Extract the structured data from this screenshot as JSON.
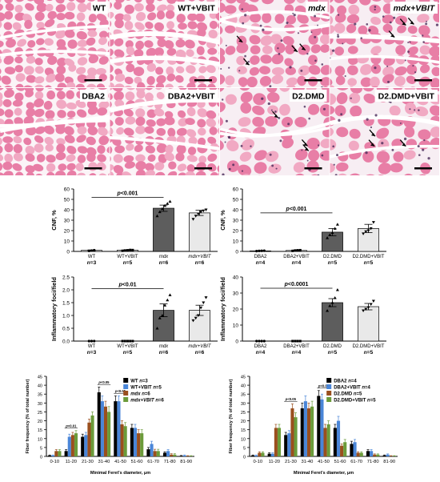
{
  "micrographs": [
    {
      "label": "WT",
      "italic": false,
      "arrows": 0,
      "tissue": "healthy"
    },
    {
      "label": "WT+VBIT",
      "italic": false,
      "arrows": 0,
      "tissue": "healthy"
    },
    {
      "label": "mdx",
      "italic": true,
      "arrows": 4,
      "tissue": "dystrophic"
    },
    {
      "label": "mdx+VBIT",
      "italic": true,
      "arrows": 3,
      "tissue": "dystrophic"
    },
    {
      "label": "DBA2",
      "italic": false,
      "arrows": 0,
      "tissue": "healthy"
    },
    {
      "label": "DBA2+VBIT",
      "italic": false,
      "arrows": 0,
      "tissue": "healthy"
    },
    {
      "label": "D2.DMD",
      "italic": false,
      "arrows": 3,
      "tissue": "fibrotic"
    },
    {
      "label": "D2.DMD+VBIT",
      "italic": false,
      "arrows": 3,
      "tissue": "fibrotic"
    }
  ],
  "colors": {
    "fiber": "#e87ea6",
    "fiber_pale": "#f1a9c3",
    "background": "#f7eef3",
    "bar": "#5d5d5d",
    "bar_light": "#e9e9e9",
    "black": "#000000",
    "blue": "#4a86d8",
    "brown": "#9a4f1e",
    "green": "#6b9b3a"
  },
  "chart_data": [
    {
      "type": "bar",
      "id": "cnf-mdx",
      "ylabel": "CNF, %",
      "ylim": [
        0,
        60
      ],
      "yticks": [
        0,
        10,
        20,
        30,
        40,
        50,
        60
      ],
      "categories": [
        "WT",
        "WT+VBIT",
        "mdx",
        "mdx+VBIT"
      ],
      "italic_categories": [
        false,
        false,
        true,
        true
      ],
      "n_labels": [
        "n=3",
        "n=5",
        "n=6",
        "n=6"
      ],
      "values": [
        1.0,
        1.2,
        41.5,
        37.0
      ],
      "errors": [
        0.4,
        0.4,
        3.0,
        2.5
      ],
      "points": [
        [
          0.5,
          0.8,
          1.2
        ],
        [
          0.6,
          0.9,
          1.1,
          1.4,
          1.3
        ],
        [
          34,
          38,
          41,
          44,
          46,
          48
        ],
        [
          31,
          34,
          36,
          38,
          39,
          40
        ]
      ],
      "significance": {
        "label": "p<0.001",
        "from": 0,
        "to": 2,
        "y": 52
      }
    },
    {
      "type": "bar",
      "id": "cnf-d2",
      "ylabel": "CNF, %",
      "ylim": [
        0,
        60
      ],
      "yticks": [
        0,
        10,
        20,
        30,
        40,
        50,
        60
      ],
      "categories": [
        "DBA2",
        "DBA2+VBIT",
        "D2.DMD",
        "D2.DMD+VBIT"
      ],
      "italic_categories": [
        false,
        false,
        false,
        false
      ],
      "n_labels": [
        "n=4",
        "n=4",
        "n=5",
        "n=5"
      ],
      "values": [
        0.5,
        0.9,
        18.5,
        22.0
      ],
      "errors": [
        0.3,
        0.4,
        3.5,
        4.0
      ],
      "points": [
        [
          0.3,
          0.5,
          0.6,
          0.7
        ],
        [
          0.5,
          0.9,
          1.1,
          1.2
        ],
        [
          13,
          16,
          18,
          22,
          26
        ],
        [
          17,
          19,
          20,
          22,
          28
        ]
      ],
      "significance": {
        "label": "p<0.001",
        "from": 0,
        "to": 2,
        "y": 37
      }
    },
    {
      "type": "bar",
      "id": "foci-mdx",
      "ylabel": "Inflammatory foci/field",
      "ylim": [
        0,
        2.5
      ],
      "yticks": [
        0.0,
        0.5,
        1.0,
        1.5,
        2.0,
        2.5
      ],
      "categories": [
        "WT",
        "WT+VBIT",
        "mdx",
        "mdx+VBIT"
      ],
      "italic_categories": [
        false,
        false,
        true,
        true
      ],
      "n_labels": [
        "n=3",
        "n=5",
        "n=6",
        "n=6"
      ],
      "values": [
        0,
        0,
        1.2,
        1.2
      ],
      "errors": [
        0,
        0,
        0.25,
        0.2
      ],
      "points": [
        [
          0,
          0,
          0
        ],
        [
          0,
          0,
          0,
          0,
          0
        ],
        [
          0.5,
          0.9,
          1.0,
          1.4,
          1.6,
          1.8
        ],
        [
          0.8,
          0.9,
          1.0,
          1.3,
          1.5,
          1.7
        ]
      ],
      "significance": {
        "label": "p<0.01",
        "from": 0,
        "to": 2,
        "y": 2.05
      }
    },
    {
      "type": "bar",
      "id": "foci-d2",
      "ylabel": "Inflammatory foci/field",
      "ylim": [
        0,
        40
      ],
      "yticks": [
        0,
        10,
        20,
        30,
        40
      ],
      "categories": [
        "DBA2",
        "DBA2+VBIT",
        "D2.DMD",
        "D2.DMD+VBIT"
      ],
      "italic_categories": [
        false,
        false,
        false,
        false
      ],
      "n_labels": [
        "n=4",
        "n=4",
        "n=5",
        "n=5"
      ],
      "values": [
        0,
        0,
        24,
        21.5
      ],
      "errors": [
        0,
        0,
        2.5,
        2.0
      ],
      "points": [
        [
          0,
          0,
          0,
          0
        ],
        [
          0,
          0,
          0,
          0
        ],
        [
          19,
          22,
          24,
          27,
          32
        ],
        [
          19,
          20,
          21,
          23,
          25
        ]
      ],
      "significance": {
        "label": "p<0.0001",
        "from": 0,
        "to": 2,
        "y": 33
      }
    },
    {
      "type": "bar",
      "id": "feret-mdx",
      "ylabel": "Fiber frequency (% of total number)",
      "xlabel": "Minimal Feret's diameter, μm",
      "ylim": [
        0,
        45
      ],
      "yticks": [
        0,
        5,
        10,
        15,
        20,
        25,
        30,
        35,
        40,
        45
      ],
      "categories": [
        "0-10",
        "11-20",
        "21-30",
        "31-40",
        "41-50",
        "51-60",
        "61-70",
        "71-80",
        "81-90"
      ],
      "series": [
        {
          "name": "WT",
          "italic": false,
          "n": "n=3",
          "color": "#000000",
          "values": [
            0.5,
            3,
            11,
            36,
            31,
            16,
            4,
            2,
            0.3
          ],
          "errors": [
            0.3,
            0.8,
            1.5,
            3,
            3,
            2,
            1,
            0.6,
            0.2
          ]
        },
        {
          "name": "WT+VBIT",
          "italic": false,
          "n": "n=5",
          "color": "#4a86d8",
          "values": [
            0.5,
            11,
            12,
            31,
            31,
            16,
            7,
            3,
            0.5
          ],
          "errors": [
            0.3,
            1.5,
            1.5,
            3,
            3,
            2,
            1.5,
            0.8,
            0.3
          ]
        },
        {
          "name": "mdx",
          "italic": true,
          "n": "n=6",
          "color": "#9a4f1e",
          "values": [
            3,
            12,
            19,
            28,
            18,
            13,
            3,
            1,
            0.2
          ],
          "errors": [
            0.8,
            1.5,
            2,
            3,
            2,
            2,
            1,
            0.5,
            0.2
          ]
        },
        {
          "name": "mdx+VBIT",
          "italic": true,
          "n": "n=6",
          "color": "#6b9b3a",
          "values": [
            3,
            13,
            23,
            25,
            17,
            13,
            3,
            1,
            0.2
          ],
          "errors": [
            0.8,
            1.5,
            2,
            3,
            2,
            2,
            1,
            0.5,
            0.2
          ]
        }
      ],
      "annotations": [
        {
          "label": "p<0.01",
          "group": 1
        },
        {
          "label": "p<0.05",
          "group": 3
        },
        {
          "label": "p<0.05",
          "group": 4
        }
      ]
    },
    {
      "type": "bar",
      "id": "feret-d2",
      "ylabel": "Fiber frequency (% of total number)",
      "xlabel": "Minimal Feret's diameter, μm",
      "ylim": [
        0,
        45
      ],
      "yticks": [
        0,
        5,
        10,
        15,
        20,
        25,
        30,
        35,
        40,
        45
      ],
      "categories": [
        "0-10",
        "11-20",
        "21-30",
        "31-40",
        "41-50",
        "51-60",
        "61-70",
        "71-80",
        "81-90"
      ],
      "series": [
        {
          "name": "DBA2",
          "italic": false,
          "n": "n=4",
          "color": "#000000",
          "values": [
            0.5,
            1.5,
            12,
            27,
            34,
            16,
            7,
            3,
            0.5
          ],
          "errors": [
            0.3,
            0.5,
            1.5,
            3,
            3,
            2,
            1.5,
            0.8,
            0.3
          ]
        },
        {
          "name": "DBA2+VBIT",
          "italic": false,
          "n": "n=4",
          "color": "#4a86d8",
          "values": [
            0.5,
            1.5,
            13,
            31,
            32,
            20,
            8,
            3,
            1
          ],
          "errors": [
            0.3,
            0.5,
            1.5,
            3,
            3,
            2.5,
            1.5,
            0.8,
            0.4
          ]
        },
        {
          "name": "D2.DMD",
          "italic": false,
          "n": "n=5",
          "color": "#9a4f1e",
          "values": [
            2,
            16,
            27,
            27,
            16,
            6,
            2,
            1,
            0.2
          ],
          "errors": [
            0.6,
            2,
            2.5,
            3,
            2,
            1,
            0.6,
            0.4,
            0.2
          ]
        },
        {
          "name": "D2.DMD+VBIT",
          "italic": false,
          "n": "n=5",
          "color": "#6b9b3a",
          "values": [
            2,
            16,
            22,
            28,
            18,
            8,
            2,
            1,
            0.2
          ],
          "errors": [
            0.6,
            2,
            2.5,
            3,
            2,
            1.5,
            0.6,
            0.4,
            0.2
          ]
        }
      ],
      "annotations": [
        {
          "label": "p<0.05",
          "group": 2
        },
        {
          "label": "p<0.05",
          "group": 4
        }
      ]
    }
  ]
}
